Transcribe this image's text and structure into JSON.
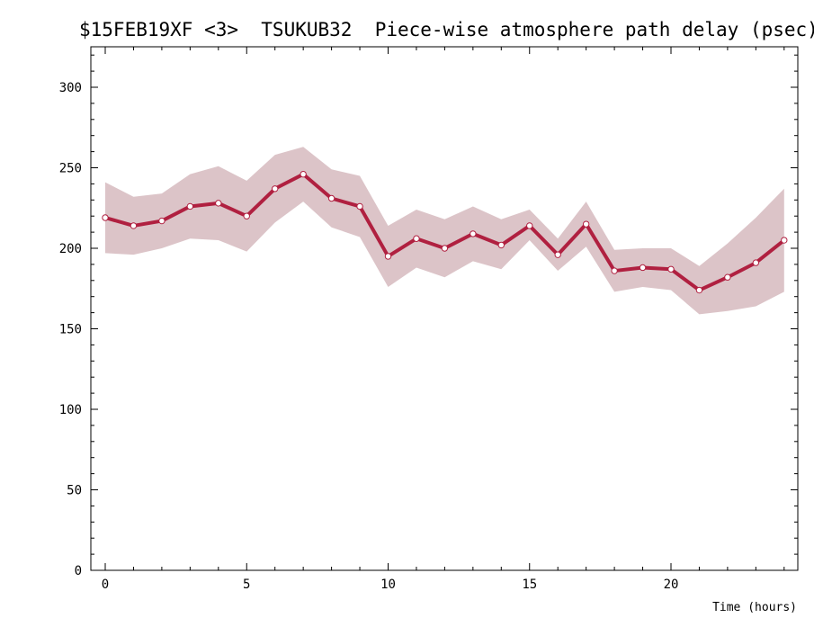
{
  "chart_data": {
    "type": "line",
    "title": "$15FEB19XF <3>  TSUKUB32  Piece-wise atmosphere path delay (psec)",
    "xlabel": "Time (hours)",
    "ylabel": "",
    "xlim": [
      -0.4,
      24.4
    ],
    "ylim": [
      0,
      325
    ],
    "x_ticks": [
      "0",
      "5",
      "10",
      "15",
      "20"
    ],
    "y_ticks": [
      "0",
      "50",
      "100",
      "150",
      "200",
      "250",
      "300"
    ],
    "grid": false,
    "series": [
      {
        "x": [
          0,
          1,
          2,
          3,
          4,
          5,
          6,
          7,
          8,
          9,
          10,
          11,
          12,
          13,
          14,
          15,
          16,
          17,
          18,
          19,
          20,
          21,
          22,
          23,
          24
        ],
        "values": [
          219,
          214,
          217,
          226,
          228,
          220,
          237,
          246,
          231,
          226,
          195,
          206,
          200,
          209,
          202,
          214,
          196,
          215,
          186,
          188,
          187,
          174,
          182,
          191,
          205
        ],
        "upper": [
          241,
          232,
          234,
          246,
          251,
          242,
          258,
          263,
          249,
          245,
          214,
          224,
          218,
          226,
          218,
          224,
          206,
          229,
          199,
          200,
          200,
          189,
          203,
          219,
          237
        ],
        "lower": [
          197,
          196,
          200,
          206,
          205,
          198,
          216,
          229,
          213,
          207,
          176,
          188,
          182,
          192,
          187,
          205,
          186,
          201,
          173,
          176,
          174,
          159,
          161,
          164,
          173
        ]
      }
    ],
    "colors": {
      "line": "#b02040",
      "band": "#dcc4c8",
      "marker_fill": "#ffffff"
    }
  }
}
